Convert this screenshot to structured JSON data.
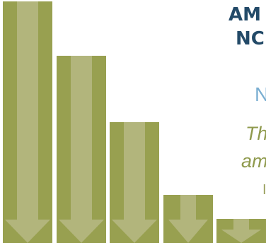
{
  "colors": {
    "bar": "#98a050",
    "arrow": "#b2b57c",
    "title": "#234a68",
    "subtitle": "#79aed1",
    "italic": "#8f9a4d",
    "small": "#9aa05e"
  },
  "icon": "down-arrow-icon",
  "bar_levels": [
    1.0,
    0.775,
    0.5,
    0.2,
    0.1
  ],
  "text": {
    "title_line1": "AM",
    "title_line2": "NC",
    "subtitle": "N",
    "italic_line1": "Th",
    "italic_line2": "am",
    "small_line": "I"
  }
}
